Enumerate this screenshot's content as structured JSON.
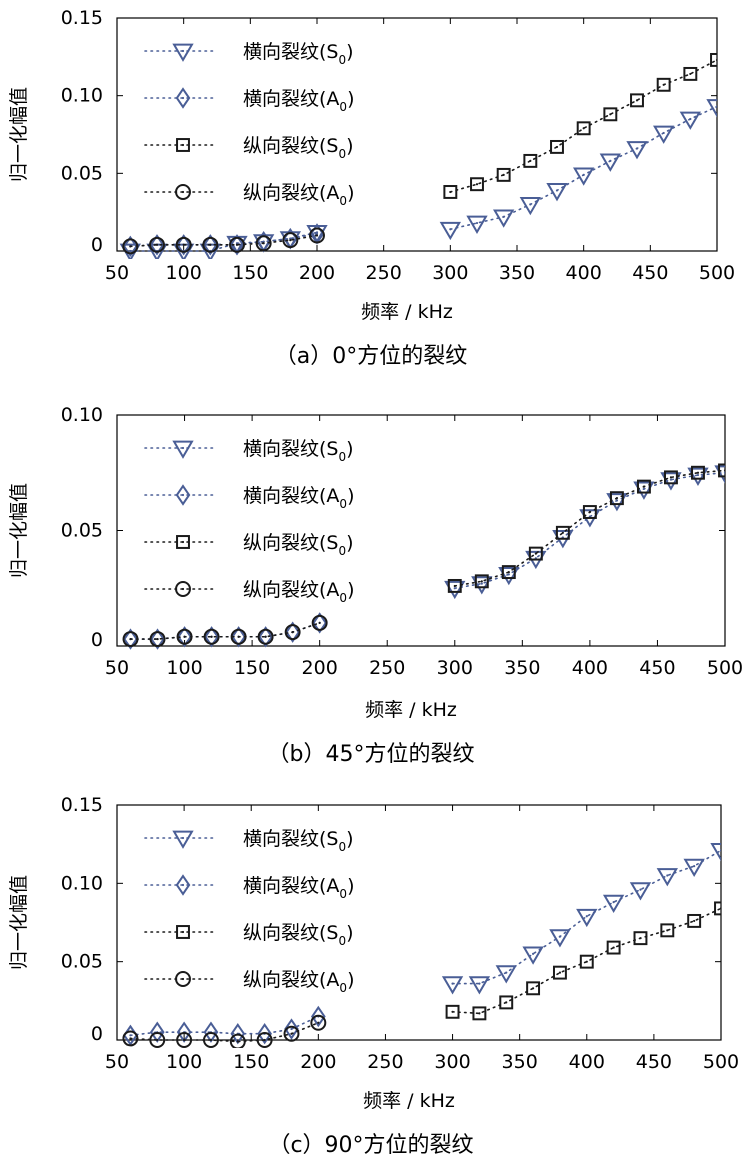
{
  "colors": {
    "transverse": "#4a5e96",
    "longitudinal": "#1a1a1a",
    "frame": "#000000"
  },
  "chart_data": [
    {
      "type": "scatter",
      "caption": "（a）0°方位的裂纹",
      "xlabel": "频率 / kHz",
      "ylabel": "归一化幅值",
      "xlim": [
        50,
        500
      ],
      "ylim": [
        0,
        0.15
      ],
      "xticks": [
        "50",
        "100",
        "150",
        "200",
        "250",
        "300",
        "350",
        "400",
        "450",
        "500"
      ],
      "yticks": [
        "0",
        "0.05",
        "0.10",
        "0.15"
      ],
      "legend_position": "top-left",
      "grid": false,
      "series": [
        {
          "name": "横向裂纹(S0)",
          "name_main": "横向裂纹(S",
          "name_sub": "0",
          "name_end": ")",
          "marker": "triangle-down",
          "color": "transverse",
          "x": [
            60,
            80,
            100,
            120,
            140,
            160,
            180,
            200,
            300,
            320,
            340,
            360,
            380,
            400,
            420,
            440,
            460,
            480,
            500
          ],
          "y": [
            0.0,
            0.0,
            0.0,
            0.0,
            0.005,
            0.006,
            0.008,
            0.012,
            0.014,
            0.018,
            0.022,
            0.03,
            0.039,
            0.049,
            0.058,
            0.066,
            0.076,
            0.085,
            0.093
          ]
        },
        {
          "name": "横向裂纹(A0)",
          "name_main": "横向裂纹(A",
          "name_sub": "0",
          "name_end": ")",
          "marker": "diamond",
          "color": "transverse",
          "x": [
            60,
            80,
            100,
            120,
            140,
            160,
            180,
            200
          ],
          "y": [
            0.003,
            0.004,
            0.004,
            0.004,
            0.004,
            0.006,
            0.008,
            0.011
          ]
        },
        {
          "name": "纵向裂纹(S0)",
          "name_main": "纵向裂纹(S",
          "name_sub": "0",
          "name_end": ")",
          "marker": "square",
          "color": "longitudinal",
          "x": [
            300,
            320,
            340,
            360,
            380,
            400,
            420,
            440,
            460,
            480,
            500
          ],
          "y": [
            0.038,
            0.043,
            0.049,
            0.058,
            0.067,
            0.079,
            0.088,
            0.097,
            0.107,
            0.114,
            0.123
          ]
        },
        {
          "name": "纵向裂纹(A0)",
          "name_main": "纵向裂纹(A",
          "name_sub": "0",
          "name_end": ")",
          "marker": "circle",
          "color": "longitudinal",
          "x": [
            60,
            80,
            100,
            120,
            140,
            160,
            180,
            200
          ],
          "y": [
            0.003,
            0.004,
            0.004,
            0.004,
            0.004,
            0.005,
            0.007,
            0.01
          ]
        }
      ]
    },
    {
      "type": "scatter",
      "caption": "（b）45°方位的裂纹",
      "xlabel": "频率 / kHz",
      "ylabel": "归一化幅值",
      "xlim": [
        50,
        500
      ],
      "ylim": [
        0,
        0.1
      ],
      "xticks": [
        "50",
        "100",
        "150",
        "200",
        "250",
        "300",
        "350",
        "400",
        "450",
        "500"
      ],
      "yticks": [
        "0",
        "0.05",
        "0.10"
      ],
      "legend_position": "top-left",
      "grid": false,
      "series": [
        {
          "name": "横向裂纹(S0)",
          "name_main": "横向裂纹(S",
          "name_sub": "0",
          "name_end": ")",
          "marker": "triangle-down",
          "color": "transverse",
          "x": [
            300,
            320,
            340,
            360,
            380,
            400,
            420,
            440,
            460,
            480,
            500
          ],
          "y": [
            0.025,
            0.027,
            0.031,
            0.038,
            0.047,
            0.056,
            0.063,
            0.068,
            0.072,
            0.074,
            0.075
          ]
        },
        {
          "name": "横向裂纹(A0)",
          "name_main": "横向裂纹(A",
          "name_sub": "0",
          "name_end": ")",
          "marker": "diamond",
          "color": "transverse",
          "x": [
            60,
            80,
            100,
            120,
            140,
            160,
            180,
            200
          ],
          "y": [
            0.003,
            0.003,
            0.004,
            0.004,
            0.004,
            0.004,
            0.006,
            0.01
          ]
        },
        {
          "name": "纵向裂纹(S0)",
          "name_main": "纵向裂纹(S",
          "name_sub": "0",
          "name_end": ")",
          "marker": "square",
          "color": "longitudinal",
          "x": [
            300,
            320,
            340,
            360,
            380,
            400,
            420,
            440,
            460,
            480,
            500
          ],
          "y": [
            0.026,
            0.028,
            0.032,
            0.04,
            0.049,
            0.058,
            0.064,
            0.069,
            0.073,
            0.075,
            0.076
          ]
        },
        {
          "name": "纵向裂纹(A0)",
          "name_main": "纵向裂纹(A",
          "name_sub": "0",
          "name_end": ")",
          "marker": "circle",
          "color": "longitudinal",
          "x": [
            60,
            80,
            100,
            120,
            140,
            160,
            180,
            200
          ],
          "y": [
            0.003,
            0.003,
            0.004,
            0.004,
            0.004,
            0.004,
            0.006,
            0.01
          ]
        }
      ]
    },
    {
      "type": "scatter",
      "caption": "（c）90°方位的裂纹",
      "xlabel": "频率 / kHz",
      "ylabel": "归一化幅值",
      "xlim": [
        50,
        500
      ],
      "ylim": [
        0,
        0.15
      ],
      "xticks": [
        "50",
        "100",
        "150",
        "200",
        "250",
        "300",
        "350",
        "400",
        "450",
        "500"
      ],
      "yticks": [
        "0",
        "0.05",
        "0.10",
        "0.15"
      ],
      "legend_position": "top-left",
      "grid": false,
      "series": [
        {
          "name": "横向裂纹(S0)",
          "name_main": "横向裂纹(S",
          "name_sub": "0",
          "name_end": ")",
          "marker": "triangle-down",
          "color": "transverse",
          "x": [
            300,
            320,
            340,
            360,
            380,
            400,
            420,
            440,
            460,
            480,
            500
          ],
          "y": [
            0.036,
            0.036,
            0.043,
            0.055,
            0.066,
            0.079,
            0.088,
            0.096,
            0.105,
            0.111,
            0.121
          ]
        },
        {
          "name": "横向裂纹(A0)",
          "name_main": "横向裂纹(A",
          "name_sub": "0",
          "name_end": ")",
          "marker": "diamond",
          "color": "transverse",
          "x": [
            60,
            80,
            100,
            120,
            140,
            160,
            180,
            200
          ],
          "y": [
            0.003,
            0.005,
            0.005,
            0.005,
            0.004,
            0.004,
            0.007,
            0.015
          ]
        },
        {
          "name": "纵向裂纹(S0)",
          "name_main": "纵向裂纹(S",
          "name_sub": "0",
          "name_end": ")",
          "marker": "square",
          "color": "longitudinal",
          "x": [
            300,
            320,
            340,
            360,
            380,
            400,
            420,
            440,
            460,
            480,
            500
          ],
          "y": [
            0.018,
            0.017,
            0.024,
            0.033,
            0.043,
            0.05,
            0.059,
            0.065,
            0.07,
            0.076,
            0.084
          ]
        },
        {
          "name": "纵向裂纹(A0)",
          "name_main": "纵向裂纹(A",
          "name_sub": "0",
          "name_end": ")",
          "marker": "circle",
          "color": "longitudinal",
          "x": [
            60,
            80,
            100,
            120,
            140,
            160,
            180,
            200
          ],
          "y": [
            0.001,
            0.0,
            0.0,
            0.0,
            -0.001,
            0.0,
            0.004,
            0.011
          ]
        }
      ]
    }
  ]
}
